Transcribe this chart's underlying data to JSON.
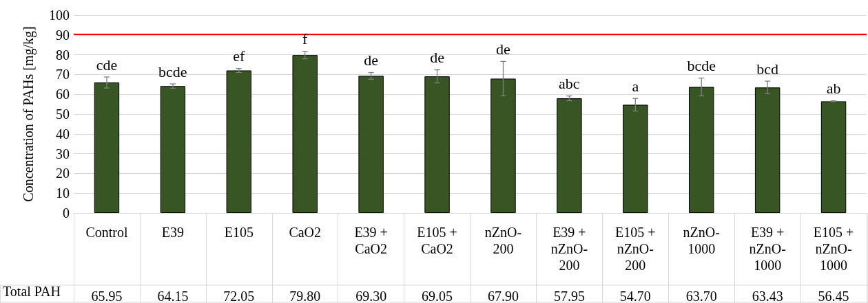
{
  "chart_data": {
    "type": "bar",
    "ylabel": "Concentration of PAHs [mg/kg]",
    "categories": [
      "Control",
      "E39",
      "E105",
      "CaO2",
      "E39 + CaO2",
      "E105 + CaO2",
      "nZnO-200",
      "E39 + nZnO-200",
      "E105 + nZnO-200",
      "nZnO-1000",
      "E39 + nZnO-1000",
      "E105 + nZnO-1000"
    ],
    "values": [
      65.95,
      64.15,
      72.05,
      79.8,
      69.3,
      69.05,
      67.9,
      57.95,
      54.7,
      63.7,
      63.43,
      56.45
    ],
    "value_labels": [
      "65.95",
      "64.15",
      "72.05",
      "79.80",
      "69.30",
      "69.05",
      "67.90",
      "57.95",
      "54.70",
      "63.70",
      "63.43",
      "56.45"
    ],
    "errors": [
      2.8,
      1.1,
      1.0,
      1.9,
      1.7,
      3.3,
      8.7,
      1.2,
      3.2,
      4.5,
      3.2,
      0.2
    ],
    "color": "#375623",
    "ylim": [
      0,
      100
    ],
    "yticks": [
      0,
      10,
      20,
      30,
      40,
      50,
      60,
      70,
      80,
      90,
      100
    ],
    "grid": "y",
    "ref_lines": [
      {
        "axis": "y",
        "value": 90.5,
        "color": "#ff0000"
      }
    ],
    "annotations": [
      "Total PAH",
      {
        "text": "cde",
        "x": "Control",
        "y": 65.95
      },
      {
        "text": "bcde",
        "x": "E39",
        "y": 64.15
      },
      {
        "text": "ef",
        "x": "E105",
        "y": 72.05
      },
      {
        "text": "f",
        "x": "CaO2",
        "y": 79.8
      },
      {
        "text": "de",
        "x": "E39 + CaO2",
        "y": 69.3
      },
      {
        "text": "de",
        "x": "E105 + CaO2",
        "y": 69.05
      },
      {
        "text": "de",
        "x": "nZnO-200",
        "y": 67.9
      },
      {
        "text": "abc",
        "x": "E39 + nZnO-200",
        "y": 57.95
      },
      {
        "text": "a",
        "x": "E105 + nZnO-200",
        "y": 54.7
      },
      {
        "text": "bcde",
        "x": "nZnO-1000",
        "y": 63.7
      },
      {
        "text": "bcd",
        "x": "E39 + nZnO-1000",
        "y": 63.43
      },
      {
        "text": "ab",
        "x": "E105 + nZnO-1000",
        "y": 56.45
      }
    ]
  }
}
